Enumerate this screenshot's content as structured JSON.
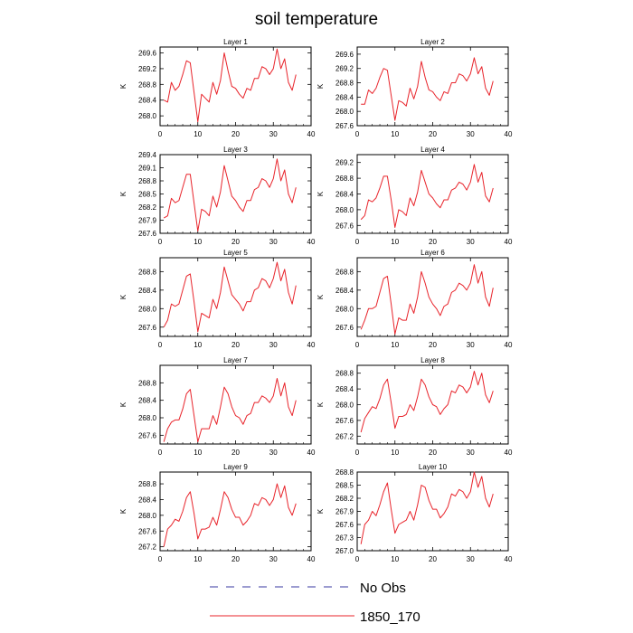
{
  "figure": {
    "title": "soil temperature"
  },
  "legend": {
    "items": [
      {
        "label": "No Obs",
        "color": "#3a3aa0",
        "dash": true
      },
      {
        "label": "1850_170",
        "color": "#e8242b",
        "dash": false
      }
    ]
  },
  "chart_data": [
    {
      "type": "line",
      "title": "Layer 1",
      "ylabel": "K",
      "xlim": [
        0,
        40
      ],
      "ylim": [
        267.75,
        269.75
      ],
      "xticks": [
        0,
        10,
        20,
        30,
        40
      ],
      "yticks": [
        268.0,
        268.4,
        268.8,
        269.2,
        269.6
      ],
      "ytick_labels": [
        "268.0",
        "268.4",
        "268.8",
        "269.2",
        "269.6"
      ],
      "series": [
        {
          "color": "#e8242b",
          "x": [
            1,
            2,
            3,
            4,
            5,
            6,
            7,
            8,
            9,
            10,
            11,
            12,
            13,
            14,
            15,
            16,
            17,
            18,
            19,
            20,
            21,
            22,
            23,
            24,
            25,
            26,
            27,
            28,
            29,
            30,
            31,
            32,
            33,
            34,
            35,
            36
          ],
          "values": [
            268.4,
            268.35,
            268.85,
            268.65,
            268.75,
            269.05,
            269.4,
            269.35,
            268.6,
            267.85,
            268.55,
            268.45,
            268.35,
            268.85,
            268.55,
            268.9,
            269.6,
            269.15,
            268.75,
            268.7,
            268.55,
            268.45,
            268.7,
            268.65,
            268.95,
            268.95,
            269.25,
            269.2,
            269.05,
            269.2,
            269.7,
            269.2,
            269.45,
            268.85,
            268.65,
            269.05
          ]
        }
      ]
    },
    {
      "type": "line",
      "title": "Layer 2",
      "ylabel": "K",
      "xlim": [
        0,
        40
      ],
      "ylim": [
        267.6,
        269.8
      ],
      "xticks": [
        0,
        10,
        20,
        30,
        40
      ],
      "yticks": [
        267.6,
        268.0,
        268.4,
        268.8,
        269.2,
        269.6
      ],
      "ytick_labels": [
        "267.6",
        "268.0",
        "268.4",
        "268.8",
        "269.2",
        "269.6"
      ],
      "series": [
        {
          "color": "#e8242b",
          "x": [
            1,
            2,
            3,
            4,
            5,
            6,
            7,
            8,
            9,
            10,
            11,
            12,
            13,
            14,
            15,
            16,
            17,
            18,
            19,
            20,
            21,
            22,
            23,
            24,
            25,
            26,
            27,
            28,
            29,
            30,
            31,
            32,
            33,
            34,
            35,
            36
          ],
          "values": [
            268.2,
            268.2,
            268.6,
            268.5,
            268.65,
            268.95,
            269.2,
            269.15,
            268.45,
            267.75,
            268.3,
            268.25,
            268.15,
            268.65,
            268.35,
            268.7,
            269.4,
            268.95,
            268.6,
            268.55,
            268.4,
            268.3,
            268.55,
            268.5,
            268.8,
            268.8,
            269.05,
            269.0,
            268.85,
            269.05,
            269.5,
            269.05,
            269.25,
            268.65,
            268.45,
            268.85
          ]
        }
      ]
    },
    {
      "type": "line",
      "title": "Layer 3",
      "ylabel": "K",
      "xlim": [
        0,
        40
      ],
      "ylim": [
        267.6,
        269.4
      ],
      "xticks": [
        0,
        10,
        20,
        30,
        40
      ],
      "yticks": [
        267.6,
        267.9,
        268.2,
        268.5,
        268.8,
        269.1,
        269.4
      ],
      "ytick_labels": [
        "267.6",
        "267.9",
        "268.2",
        "268.5",
        "268.8",
        "269.1",
        "269.4"
      ],
      "series": [
        {
          "color": "#e8242b",
          "x": [
            1,
            2,
            3,
            4,
            5,
            6,
            7,
            8,
            9,
            10,
            11,
            12,
            13,
            14,
            15,
            16,
            17,
            18,
            19,
            20,
            21,
            22,
            23,
            24,
            25,
            26,
            27,
            28,
            29,
            30,
            31,
            32,
            33,
            34,
            35,
            36
          ],
          "values": [
            267.95,
            268.0,
            268.4,
            268.3,
            268.35,
            268.65,
            268.95,
            268.95,
            268.3,
            267.65,
            268.15,
            268.1,
            268.0,
            268.45,
            268.2,
            268.55,
            269.15,
            268.8,
            268.45,
            268.35,
            268.2,
            268.1,
            268.35,
            268.35,
            268.6,
            268.65,
            268.85,
            268.8,
            268.65,
            268.85,
            269.3,
            268.8,
            269.05,
            268.5,
            268.3,
            268.65
          ]
        }
      ]
    },
    {
      "type": "line",
      "title": "Layer 4",
      "ylabel": "K",
      "xlim": [
        0,
        40
      ],
      "ylim": [
        267.4,
        269.4
      ],
      "xticks": [
        0,
        10,
        20,
        30,
        40
      ],
      "yticks": [
        267.6,
        268.0,
        268.4,
        268.8,
        269.2
      ],
      "ytick_labels": [
        "267.6",
        "268.0",
        "268.4",
        "268.8",
        "269.2"
      ],
      "series": [
        {
          "color": "#e8242b",
          "x": [
            1,
            2,
            3,
            4,
            5,
            6,
            7,
            8,
            9,
            10,
            11,
            12,
            13,
            14,
            15,
            16,
            17,
            18,
            19,
            20,
            21,
            22,
            23,
            24,
            25,
            26,
            27,
            28,
            29,
            30,
            31,
            32,
            33,
            34,
            35,
            36
          ],
          "values": [
            267.75,
            267.85,
            268.25,
            268.2,
            268.3,
            268.55,
            268.85,
            268.85,
            268.25,
            267.55,
            268.0,
            267.95,
            267.85,
            268.3,
            268.1,
            268.45,
            269.0,
            268.7,
            268.4,
            268.3,
            268.15,
            268.05,
            268.25,
            268.25,
            268.5,
            268.55,
            268.7,
            268.65,
            268.5,
            268.7,
            269.15,
            268.7,
            268.95,
            268.35,
            268.2,
            268.55
          ]
        }
      ]
    },
    {
      "type": "line",
      "title": "Layer 5",
      "ylabel": "K",
      "xlim": [
        0,
        40
      ],
      "ylim": [
        267.4,
        269.1
      ],
      "xticks": [
        0,
        10,
        20,
        30,
        40
      ],
      "yticks": [
        267.6,
        268.0,
        268.4,
        268.8
      ],
      "ytick_labels": [
        "267.6",
        "268.0",
        "268.4",
        "268.8"
      ],
      "series": [
        {
          "color": "#e8242b",
          "x": [
            1,
            2,
            3,
            4,
            5,
            6,
            7,
            8,
            9,
            10,
            11,
            12,
            13,
            14,
            15,
            16,
            17,
            18,
            19,
            20,
            21,
            22,
            23,
            24,
            25,
            26,
            27,
            28,
            29,
            30,
            31,
            32,
            33,
            34,
            35,
            36
          ],
          "values": [
            267.6,
            267.75,
            268.1,
            268.05,
            268.1,
            268.4,
            268.7,
            268.75,
            268.15,
            267.5,
            267.9,
            267.85,
            267.8,
            268.2,
            268.0,
            268.35,
            268.9,
            268.6,
            268.3,
            268.2,
            268.1,
            267.95,
            268.15,
            268.15,
            268.4,
            268.45,
            268.65,
            268.6,
            268.45,
            268.65,
            269.0,
            268.6,
            268.85,
            268.35,
            268.1,
            268.5
          ]
        }
      ]
    },
    {
      "type": "line",
      "title": "Layer 6",
      "ylabel": "K",
      "xlim": [
        0,
        40
      ],
      "ylim": [
        267.4,
        269.1
      ],
      "xticks": [
        0,
        10,
        20,
        30,
        40
      ],
      "yticks": [
        267.6,
        268.0,
        268.4,
        268.8
      ],
      "ytick_labels": [
        "267.6",
        "268.0",
        "268.4",
        "268.8"
      ],
      "series": [
        {
          "color": "#e8242b",
          "x": [
            1,
            2,
            3,
            4,
            5,
            6,
            7,
            8,
            9,
            10,
            11,
            12,
            13,
            14,
            15,
            16,
            17,
            18,
            19,
            20,
            21,
            22,
            23,
            24,
            25,
            26,
            27,
            28,
            29,
            30,
            31,
            32,
            33,
            34,
            35,
            36
          ],
          "values": [
            267.55,
            267.75,
            268.0,
            268.0,
            268.05,
            268.35,
            268.65,
            268.7,
            268.1,
            267.45,
            267.8,
            267.75,
            267.75,
            268.1,
            267.9,
            268.25,
            268.8,
            268.55,
            268.25,
            268.1,
            268.0,
            267.85,
            268.05,
            268.1,
            268.35,
            268.4,
            268.55,
            268.5,
            268.4,
            268.55,
            268.95,
            268.55,
            268.8,
            268.25,
            268.05,
            268.45
          ]
        }
      ]
    },
    {
      "type": "line",
      "title": "Layer 7",
      "ylabel": "K",
      "xlim": [
        0,
        40
      ],
      "ylim": [
        267.4,
        269.2
      ],
      "xticks": [
        0,
        10,
        20,
        30,
        40
      ],
      "yticks": [
        267.6,
        268.0,
        268.4,
        268.8
      ],
      "ytick_labels": [
        "267.6",
        "268.0",
        "268.4",
        "268.8"
      ],
      "series": [
        {
          "color": "#e8242b",
          "x": [
            1,
            2,
            3,
            4,
            5,
            6,
            7,
            8,
            9,
            10,
            11,
            12,
            13,
            14,
            15,
            16,
            17,
            18,
            19,
            20,
            21,
            22,
            23,
            24,
            25,
            26,
            27,
            28,
            29,
            30,
            31,
            32,
            33,
            34,
            35,
            36
          ],
          "values": [
            267.45,
            267.75,
            267.9,
            267.95,
            267.95,
            268.2,
            268.55,
            268.65,
            268.05,
            267.45,
            267.75,
            267.75,
            267.75,
            268.05,
            267.85,
            268.25,
            268.7,
            268.55,
            268.25,
            268.05,
            268.0,
            267.85,
            268.05,
            268.1,
            268.35,
            268.35,
            268.5,
            268.45,
            268.35,
            268.5,
            268.9,
            268.5,
            268.8,
            268.25,
            268.05,
            268.4
          ]
        }
      ]
    },
    {
      "type": "line",
      "title": "Layer 8",
      "ylabel": "K",
      "xlim": [
        0,
        40
      ],
      "ylim": [
        267.0,
        269.0
      ],
      "xticks": [
        0,
        10,
        20,
        30,
        40
      ],
      "yticks": [
        267.2,
        267.6,
        268.0,
        268.4,
        268.8
      ],
      "ytick_labels": [
        "267.2",
        "267.6",
        "268.0",
        "268.4",
        "268.8"
      ],
      "series": [
        {
          "color": "#e8242b",
          "x": [
            1,
            2,
            3,
            4,
            5,
            6,
            7,
            8,
            9,
            10,
            11,
            12,
            13,
            14,
            15,
            16,
            17,
            18,
            19,
            20,
            21,
            22,
            23,
            24,
            25,
            26,
            27,
            28,
            29,
            30,
            31,
            32,
            33,
            34,
            35,
            36
          ],
          "values": [
            267.3,
            267.65,
            267.8,
            267.95,
            267.9,
            268.15,
            268.5,
            268.65,
            268.05,
            267.4,
            267.7,
            267.7,
            267.75,
            268.0,
            267.85,
            268.2,
            268.65,
            268.5,
            268.2,
            268.0,
            267.95,
            267.75,
            267.9,
            268.0,
            268.35,
            268.3,
            268.5,
            268.45,
            268.3,
            268.45,
            268.85,
            268.5,
            268.8,
            268.25,
            268.05,
            268.35
          ]
        }
      ]
    },
    {
      "type": "line",
      "title": "Layer 9",
      "ylabel": "K",
      "xlim": [
        0,
        40
      ],
      "ylim": [
        267.1,
        269.1
      ],
      "xticks": [
        0,
        10,
        20,
        30,
        40
      ],
      "yticks": [
        267.2,
        267.6,
        268.0,
        268.4,
        268.8
      ],
      "ytick_labels": [
        "267.2",
        "267.6",
        "268.0",
        "268.4",
        "268.8"
      ],
      "series": [
        {
          "color": "#e8242b",
          "x": [
            1,
            2,
            3,
            4,
            5,
            6,
            7,
            8,
            9,
            10,
            11,
            12,
            13,
            14,
            15,
            16,
            17,
            18,
            19,
            20,
            21,
            22,
            23,
            24,
            25,
            26,
            27,
            28,
            29,
            30,
            31,
            32,
            33,
            34,
            35,
            36
          ],
          "values": [
            267.2,
            267.65,
            267.75,
            267.9,
            267.85,
            268.1,
            268.45,
            268.6,
            268.05,
            267.4,
            267.65,
            267.65,
            267.7,
            267.95,
            267.75,
            268.15,
            268.6,
            268.45,
            268.15,
            267.95,
            267.95,
            267.75,
            267.85,
            268.0,
            268.3,
            268.25,
            268.45,
            268.4,
            268.25,
            268.4,
            268.8,
            268.45,
            268.75,
            268.2,
            268.0,
            268.3
          ]
        }
      ]
    },
    {
      "type": "line",
      "title": "Layer 10",
      "ylabel": "K",
      "xlim": [
        0,
        40
      ],
      "ylim": [
        267.0,
        268.8
      ],
      "xticks": [
        0,
        10,
        20,
        30,
        40
      ],
      "yticks": [
        267.0,
        267.3,
        267.6,
        267.9,
        268.2,
        268.5,
        268.8
      ],
      "ytick_labels": [
        "267.0",
        "267.3",
        "267.6",
        "267.9",
        "268.2",
        "268.5",
        "268.8"
      ],
      "series": [
        {
          "color": "#e8242b",
          "x": [
            1,
            2,
            3,
            4,
            5,
            6,
            7,
            8,
            9,
            10,
            11,
            12,
            13,
            14,
            15,
            16,
            17,
            18,
            19,
            20,
            21,
            22,
            23,
            24,
            25,
            26,
            27,
            28,
            29,
            30,
            31,
            32,
            33,
            34,
            35,
            36
          ],
          "values": [
            267.15,
            267.6,
            267.7,
            267.9,
            267.8,
            268.05,
            268.35,
            268.55,
            267.95,
            267.4,
            267.6,
            267.65,
            267.7,
            267.9,
            267.7,
            268.05,
            268.5,
            268.45,
            268.15,
            267.95,
            267.95,
            267.75,
            267.85,
            268.0,
            268.3,
            268.25,
            268.4,
            268.35,
            268.2,
            268.35,
            268.8,
            268.45,
            268.7,
            268.2,
            268.0,
            268.3
          ]
        }
      ]
    }
  ]
}
